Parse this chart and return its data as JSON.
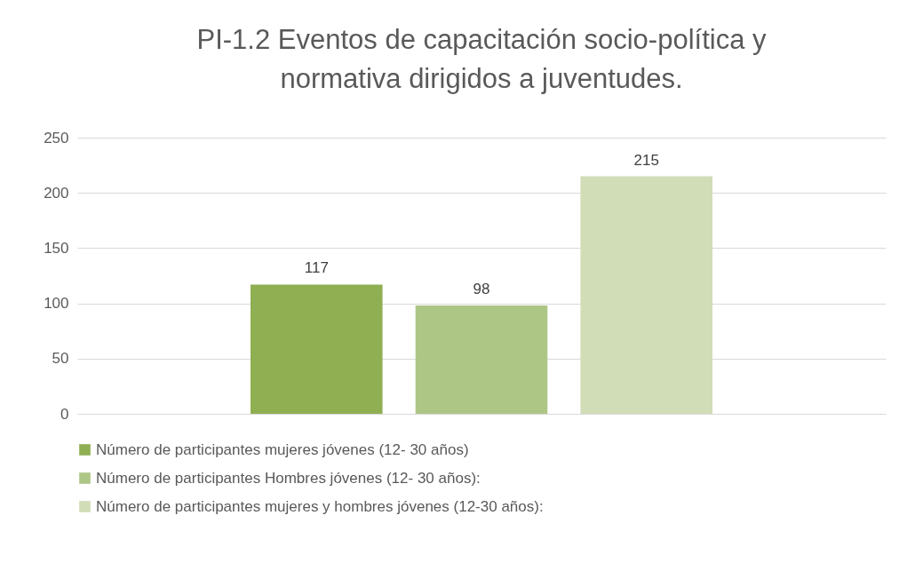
{
  "chart_data": {
    "type": "bar",
    "title": "PI-1.2 Eventos de capacitación socio-política y normativa dirigidos a juventudes.",
    "categories": [
      null
    ],
    "series": [
      {
        "name": "Número de participantes mujeres jóvenes (12- 30 años)",
        "color": "#8faf52",
        "values": [
          117
        ]
      },
      {
        "name": "Número de participantes Hombres jóvenes (12- 30 años):",
        "color": "#adc686",
        "values": [
          98
        ]
      },
      {
        "name": "Número de participantes mujeres y hombres jóvenes (12-30 años):",
        "color": "#d0ddb7",
        "values": [
          215
        ]
      }
    ],
    "ylim": [
      0,
      250
    ],
    "yticks": [
      0,
      50,
      100,
      150,
      200,
      250
    ],
    "grid": "y",
    "legend": "bottom",
    "data_labels": true
  }
}
